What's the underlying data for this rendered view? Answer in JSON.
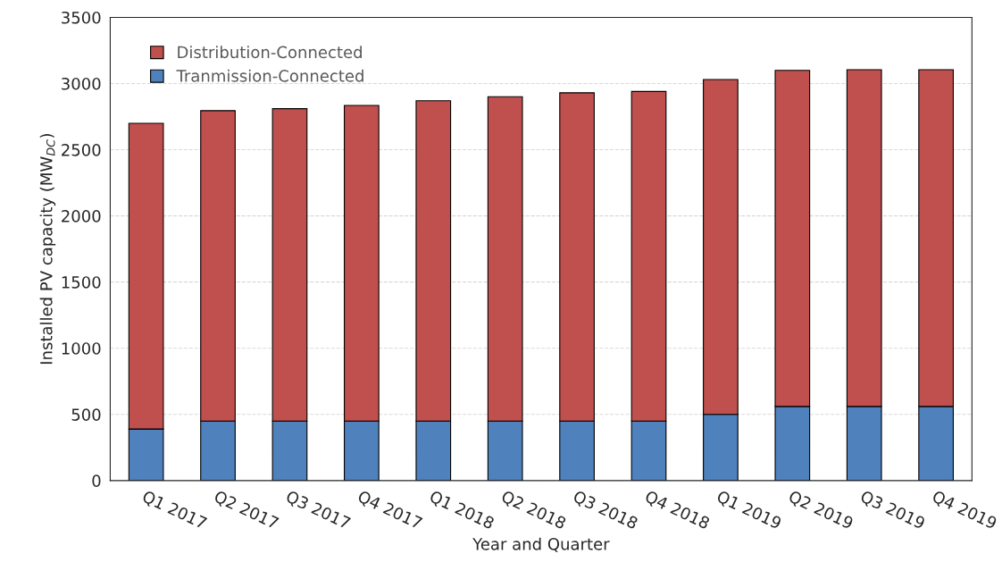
{
  "chart_data": {
    "type": "bar",
    "stacked": true,
    "xlabel": "Year and Quarter",
    "ylabel": "Installed PV capacity (MW$_{DC}$)",
    "categories": [
      "Q1 2017",
      "Q2 2017",
      "Q3 2017",
      "Q4 2017",
      "Q1 2018",
      "Q2 2018",
      "Q3 2018",
      "Q4 2018",
      "Q1 2019",
      "Q2 2019",
      "Q3 2019",
      "Q4 2019"
    ],
    "series": [
      {
        "name": "Tranmission-Connected",
        "color": "#4f81bd",
        "values": [
          390,
          450,
          450,
          450,
          450,
          450,
          450,
          450,
          500,
          560,
          560,
          560
        ]
      },
      {
        "name": "Distribution-Connected",
        "color": "#c0504d",
        "values": [
          2310,
          2345,
          2360,
          2385,
          2420,
          2450,
          2480,
          2490,
          2530,
          2540,
          2545,
          2545
        ]
      }
    ],
    "ylim": [
      0,
      3500
    ],
    "yticks": [
      0,
      500,
      1000,
      1500,
      2000,
      2500,
      3000,
      3500
    ],
    "grid": "y",
    "legend": "top left"
  }
}
